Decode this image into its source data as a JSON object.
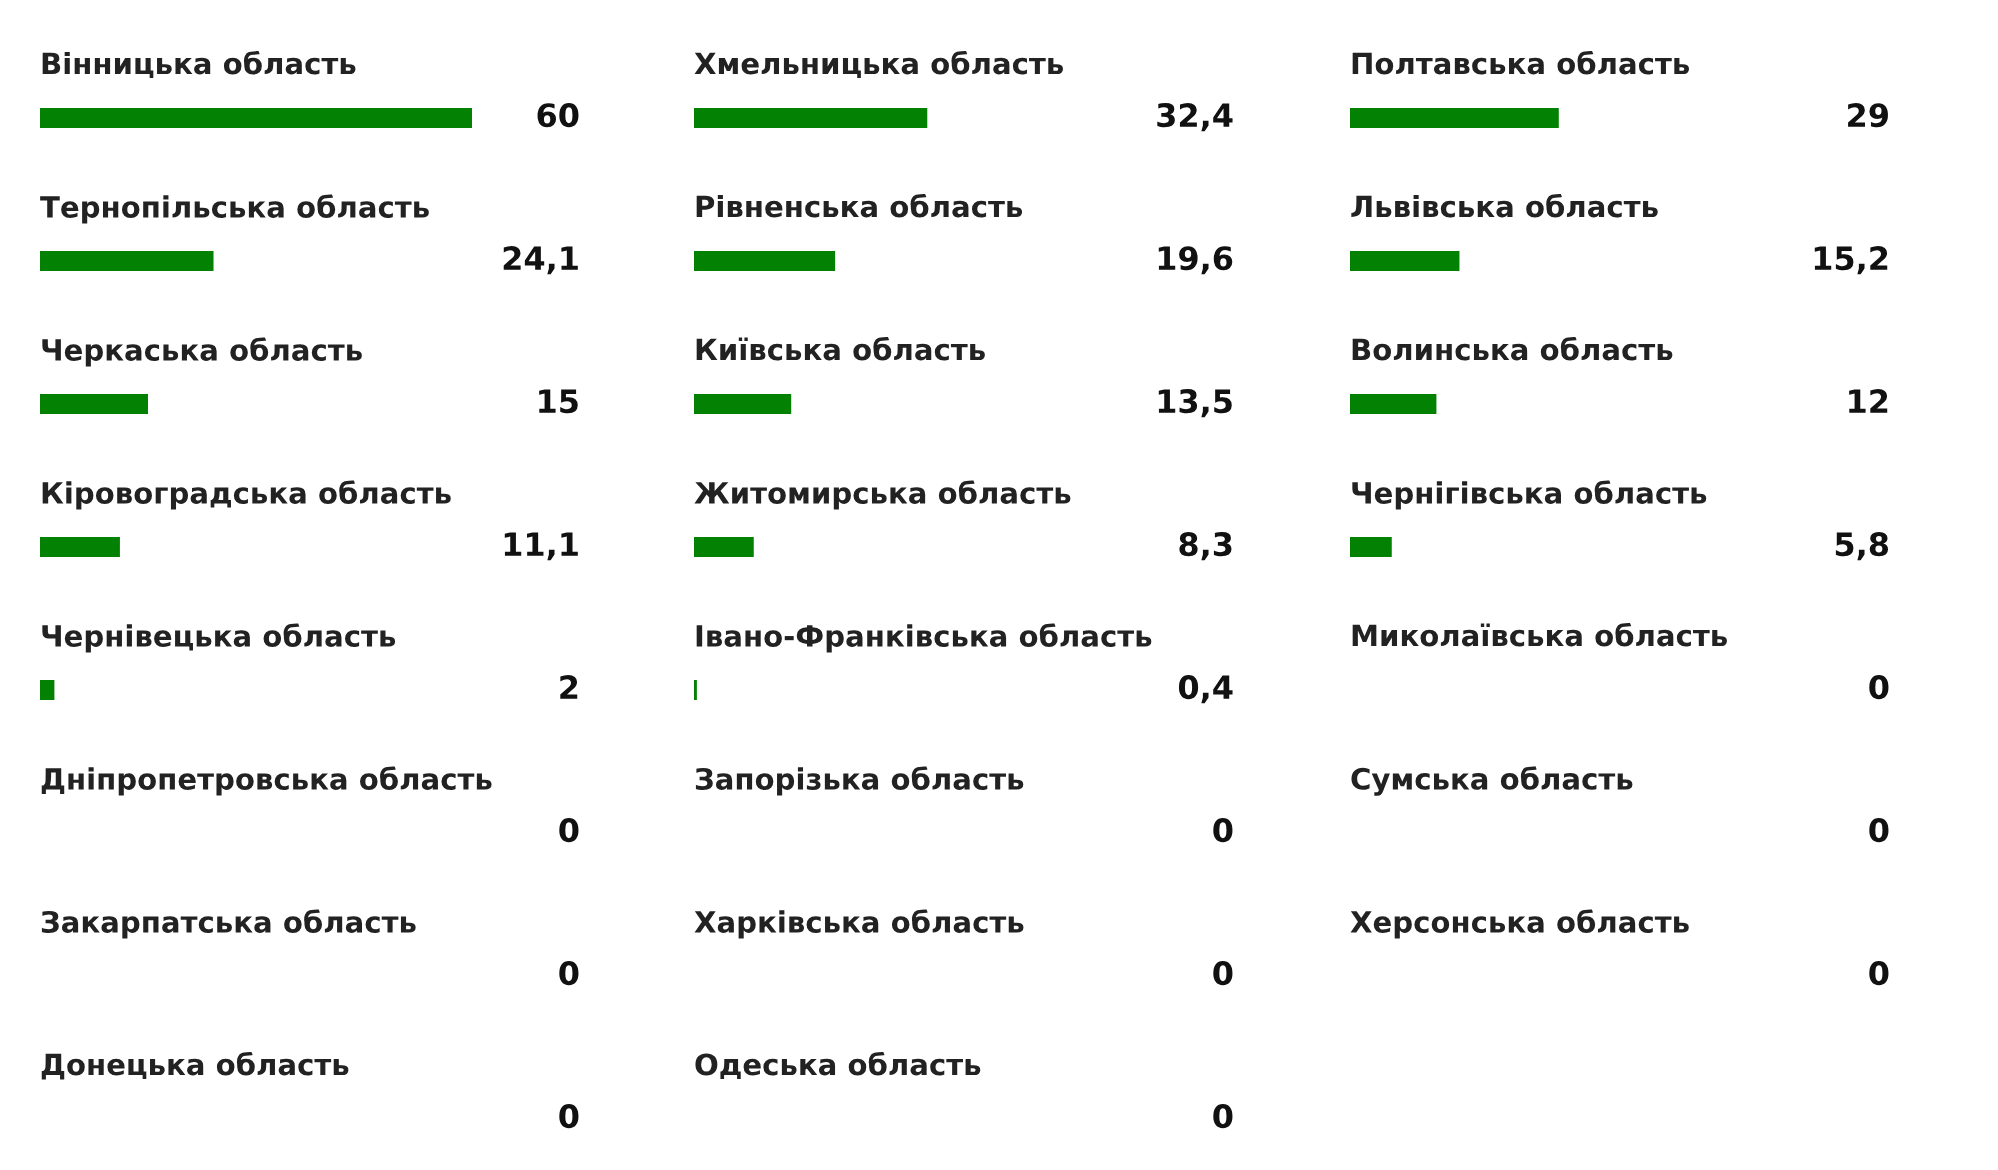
{
  "chart_data": [
    {
      "type": "bar",
      "orientation": "horizontal",
      "color": "#038103",
      "categories": [
        "Вінницька область",
        "Тернопільська область",
        "Черкаська область",
        "Кіровоградська область",
        "Чернівецька область",
        "Дніпропетровська область",
        "Закарпатська область",
        "Донецька область"
      ],
      "values": [
        60,
        24.1,
        15,
        11.1,
        2,
        0,
        0,
        0
      ],
      "value_labels": [
        "60",
        "24,1",
        "15",
        "11,1",
        "2",
        "0",
        "0",
        "0"
      ]
    },
    {
      "type": "bar",
      "orientation": "horizontal",
      "color": "#038103",
      "categories": [
        "Хмельницька область",
        "Рівненська область",
        "Київська область",
        "Житомирська область",
        "Івано-Франківська область",
        "Запорізька область",
        "Харківська область",
        "Одеська область"
      ],
      "values": [
        32.4,
        19.6,
        13.5,
        8.3,
        0.4,
        0,
        0,
        0
      ],
      "value_labels": [
        "32,4",
        "19,6",
        "13,5",
        "8,3",
        "0,4",
        "0",
        "0",
        "0"
      ]
    },
    {
      "type": "bar",
      "orientation": "horizontal",
      "color": "#038103",
      "categories": [
        "Полтавська область",
        "Львівська область",
        "Волинська область",
        "Чернігівська область",
        "Миколаївська область",
        "Сумська область",
        "Херсонська область"
      ],
      "values": [
        29,
        15.2,
        12,
        5.8,
        0,
        0,
        0
      ],
      "value_labels": [
        "29",
        "15,2",
        "12",
        "5,8",
        "0",
        "0",
        "0"
      ]
    }
  ]
}
